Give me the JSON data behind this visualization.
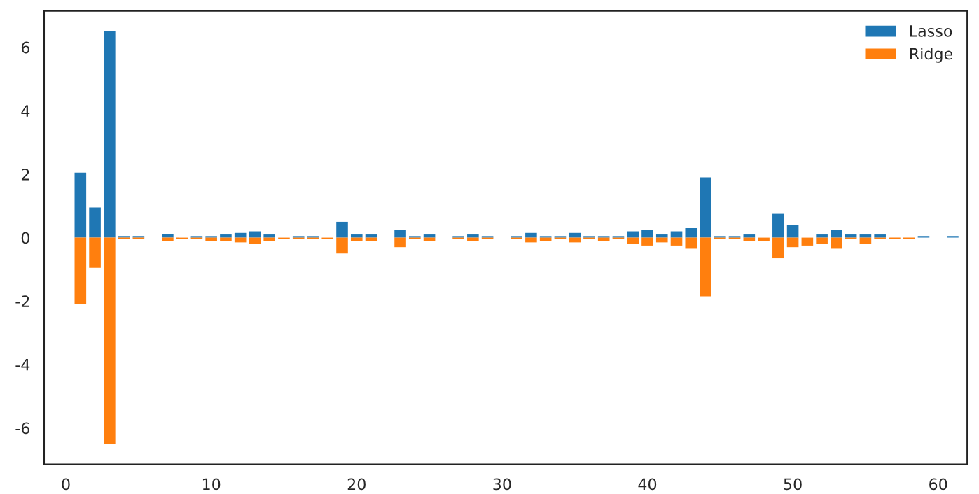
{
  "chart_data": {
    "type": "bar",
    "x": [
      1,
      2,
      3,
      4,
      5,
      6,
      7,
      8,
      9,
      10,
      11,
      12,
      13,
      14,
      15,
      16,
      17,
      18,
      19,
      20,
      21,
      22,
      23,
      24,
      25,
      26,
      27,
      28,
      29,
      30,
      31,
      32,
      33,
      34,
      35,
      36,
      37,
      38,
      39,
      40,
      41,
      42,
      43,
      44,
      45,
      46,
      47,
      48,
      49,
      50,
      51,
      52,
      53,
      54,
      55,
      56,
      57,
      58,
      59,
      60,
      61
    ],
    "series": [
      {
        "name": "Lasso",
        "color": "#1f77b4",
        "values": [
          2.05,
          0.95,
          6.5,
          0.05,
          0.05,
          0,
          0.1,
          0,
          0.05,
          0.05,
          0.1,
          0.15,
          0.2,
          0.1,
          0,
          0.05,
          0.05,
          0,
          0.5,
          0.1,
          0.1,
          0,
          0.25,
          0.05,
          0.1,
          0,
          0.05,
          0.1,
          0.05,
          0,
          0.05,
          0.15,
          0.05,
          0.05,
          0.15,
          0.05,
          0.05,
          0.05,
          0.2,
          0.25,
          0.1,
          0.2,
          0.3,
          1.9,
          0.05,
          0.05,
          0.1,
          0,
          0.75,
          0.4,
          0,
          0.1,
          0.25,
          0.1,
          0.1,
          0.1,
          0,
          0,
          0.05,
          0,
          0.05
        ]
      },
      {
        "name": "Ridge",
        "color": "#ff7f0e",
        "values": [
          -2.1,
          -0.95,
          -6.5,
          -0.05,
          -0.05,
          0,
          -0.1,
          -0.05,
          -0.05,
          -0.1,
          -0.1,
          -0.15,
          -0.2,
          -0.1,
          -0.05,
          -0.05,
          -0.05,
          -0.05,
          -0.5,
          -0.1,
          -0.1,
          0,
          -0.3,
          -0.05,
          -0.1,
          0,
          -0.05,
          -0.1,
          -0.05,
          0,
          -0.05,
          -0.15,
          -0.1,
          -0.05,
          -0.15,
          -0.05,
          -0.1,
          -0.05,
          -0.2,
          -0.25,
          -0.15,
          -0.25,
          -0.35,
          -1.85,
          -0.05,
          -0.05,
          -0.1,
          -0.1,
          -0.65,
          -0.3,
          -0.25,
          -0.2,
          -0.35,
          -0.05,
          -0.2,
          -0.05,
          -0.05,
          -0.05,
          0,
          0,
          0
        ]
      }
    ],
    "xlim": [
      -1.5,
      62
    ],
    "xticks": [
      0,
      10,
      20,
      30,
      40,
      50,
      60
    ],
    "ylim": [
      -7.15,
      7.15
    ],
    "yticks": [
      -6,
      -4,
      -2,
      0,
      2,
      4,
      6
    ],
    "grid": false,
    "legend": "top right"
  }
}
